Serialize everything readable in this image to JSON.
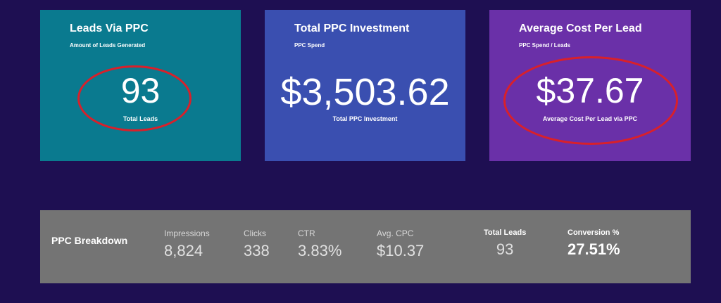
{
  "cards": {
    "leads": {
      "title": "Leads Via PPC",
      "subtitle": "Amount of Leads Generated",
      "value": "93",
      "caption": "Total Leads",
      "color": "#0a7a8f"
    },
    "investment": {
      "title": "Total PPC Investment",
      "subtitle": "PPC Spend",
      "value": "$3,503.62",
      "caption": "Total PPC Investment",
      "color": "#3a4fb0"
    },
    "cost_per_lead": {
      "title": "Average Cost Per Lead",
      "subtitle": "PPC Spend / Leads",
      "value": "$37.67",
      "caption": "Average Cost Per Lead via PPC",
      "color": "#6a30a8"
    }
  },
  "breakdown": {
    "label": "PPC Breakdown",
    "metrics": [
      {
        "label": "Impressions",
        "value": "8,824"
      },
      {
        "label": "Clicks",
        "value": "338"
      },
      {
        "label": "CTR",
        "value": "3.83%"
      },
      {
        "label": "Avg. CPC",
        "value": "$10.37"
      },
      {
        "label": "Total Leads",
        "value": "93"
      },
      {
        "label": "Conversion %",
        "value": "27.51%"
      }
    ]
  },
  "colors": {
    "background": "#1e0f52",
    "highlight_circle": "#d9202a",
    "breakdown_bg": "#747474"
  }
}
